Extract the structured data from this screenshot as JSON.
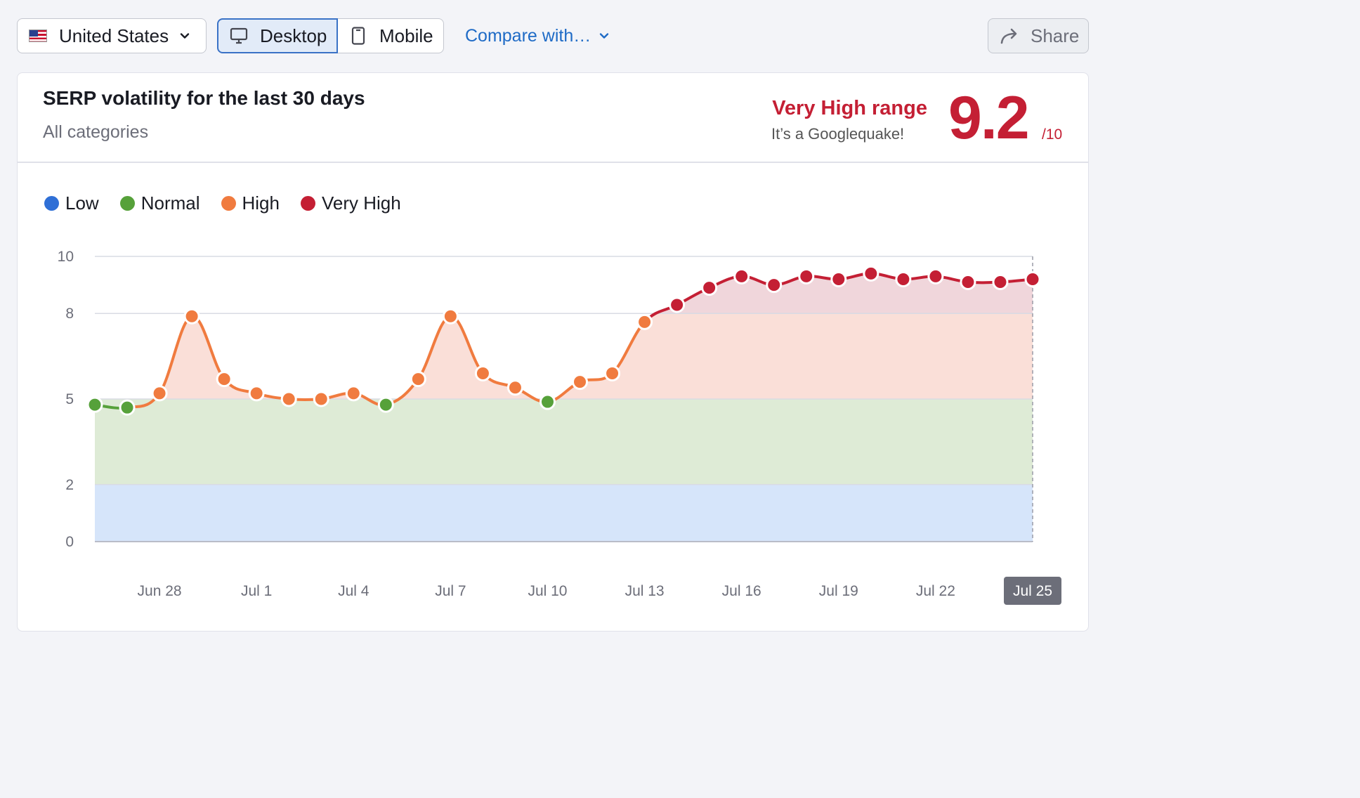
{
  "toolbar": {
    "country": "United States",
    "device_desktop": "Desktop",
    "device_mobile": "Mobile",
    "selected_device": "Desktop",
    "compare": "Compare with…",
    "share": "Share",
    "icons": [
      "us-flag-icon",
      "chevron-down-icon",
      "monitor-icon",
      "phone-icon",
      "share-arrow-icon"
    ]
  },
  "card": {
    "title": "SERP volatility for the last 30 days",
    "subtitle": "All categories",
    "range_label": "Very High range",
    "range_note": "It’s a Googlequake!",
    "score": "9.2",
    "score_max": "/10"
  },
  "colors": {
    "low": "#2f6fd6",
    "normal": "#56a13a",
    "high": "#f07b3f",
    "very_high": "#c41f34",
    "accent_link": "#1f6bc6"
  },
  "chart_data": {
    "type": "line",
    "title": "",
    "xlabel": "",
    "ylabel": "",
    "ylim": [
      0,
      10
    ],
    "y_ticks": [
      "0",
      "2",
      "5",
      "8",
      "10"
    ],
    "bands": [
      {
        "name": "Low",
        "from": 0,
        "to": 2,
        "color": "#d6e5fa"
      },
      {
        "name": "Normal",
        "from": 2,
        "to": 5,
        "color": "#deebd6"
      },
      {
        "name": "High",
        "from": 5,
        "to": 8,
        "color": "#fadfd8"
      },
      {
        "name": "Very High",
        "from": 8,
        "to": 10,
        "color": "#f0d6db"
      }
    ],
    "legend": [
      "Low",
      "Normal",
      "High",
      "Very High"
    ],
    "legend_position": "top-left",
    "grid": true,
    "x_tick_labels": [
      "Jun 28",
      "Jul 1",
      "Jul 4",
      "Jul 7",
      "Jul 10",
      "Jul 13",
      "Jul 16",
      "Jul 19",
      "Jul 22",
      "Jul 25"
    ],
    "highlighted_x_label": "Jul 25",
    "x": [
      "Jun 26",
      "Jun 27",
      "Jun 28",
      "Jun 29",
      "Jun 30",
      "Jul 1",
      "Jul 2",
      "Jul 3",
      "Jul 4",
      "Jul 5",
      "Jul 6",
      "Jul 7",
      "Jul 8",
      "Jul 9",
      "Jul 10",
      "Jul 11",
      "Jul 12",
      "Jul 13",
      "Jul 14",
      "Jul 15",
      "Jul 16",
      "Jul 17",
      "Jul 18",
      "Jul 19",
      "Jul 20",
      "Jul 21",
      "Jul 22",
      "Jul 23",
      "Jul 24",
      "Jul 25"
    ],
    "series": [
      {
        "values": [
          4.8,
          4.7,
          5.2,
          7.9,
          5.7,
          5.2,
          5.0,
          5.0,
          5.2,
          4.8,
          5.7,
          7.9,
          5.9,
          5.4,
          4.9,
          5.6,
          5.9,
          7.7,
          8.3,
          8.9,
          9.3,
          9.0,
          9.3,
          9.2,
          9.4,
          9.2,
          9.3,
          9.1,
          9.1,
          9.2
        ]
      }
    ]
  }
}
